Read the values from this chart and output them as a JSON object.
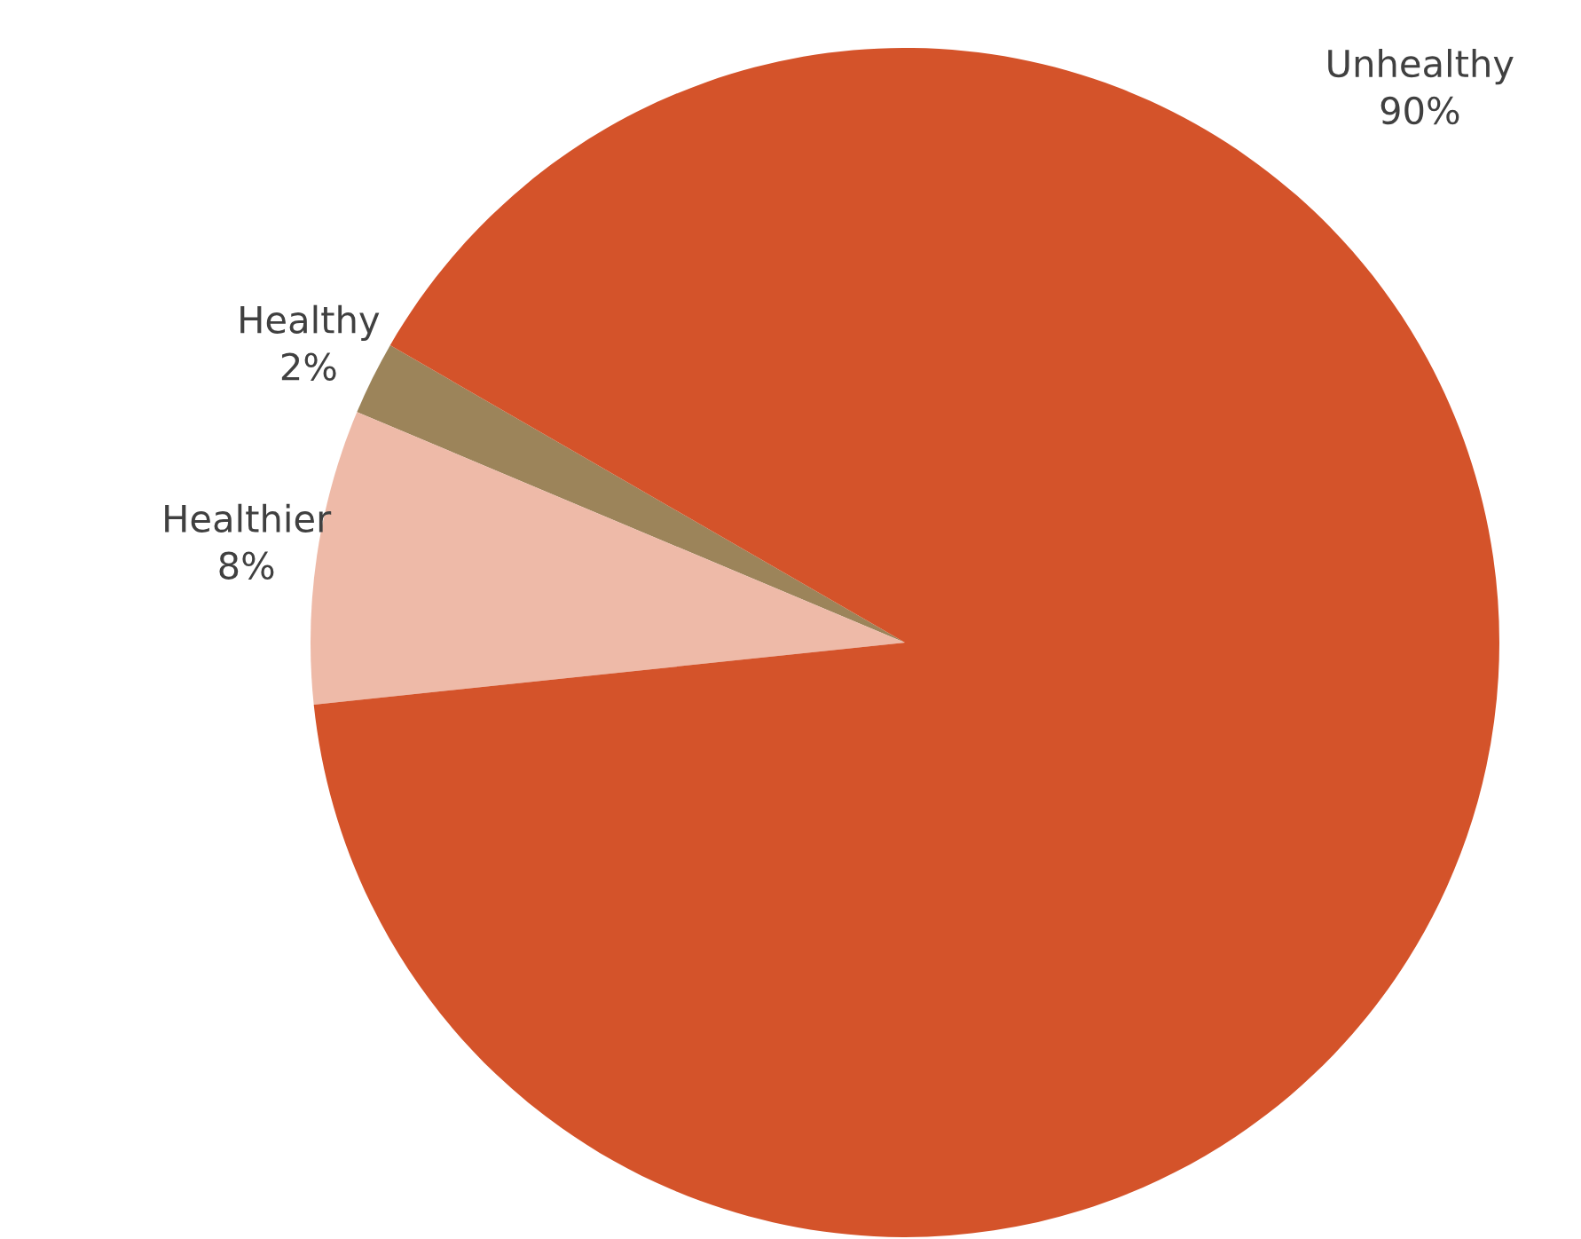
{
  "chart_data": {
    "type": "pie",
    "categories": [
      "Healthy",
      "Healthier",
      "Unhealthy"
    ],
    "values": [
      2,
      8,
      90
    ],
    "value_labels": [
      "2%",
      "8%",
      "90%"
    ],
    "colors": [
      "#9c845a",
      "#eebaa8",
      "#d4532a"
    ]
  }
}
